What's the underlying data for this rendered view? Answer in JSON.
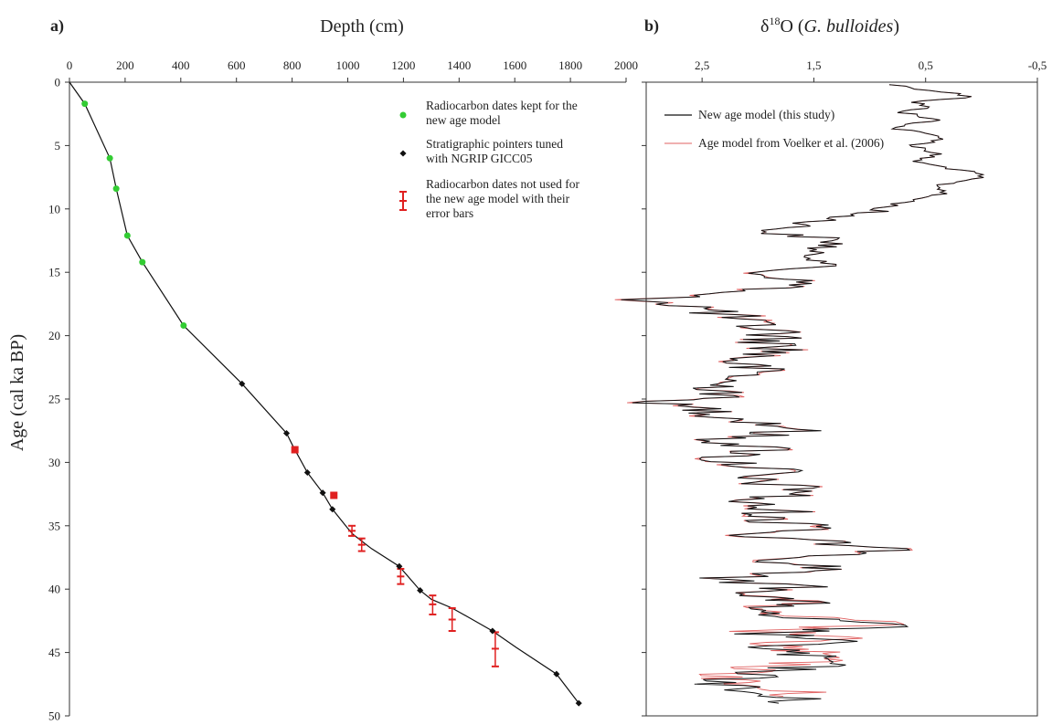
{
  "chart_data": [
    {
      "type": "scatter",
      "panel_label": "a)",
      "title": "Depth (cm)",
      "xlabel": "Depth (cm)",
      "ylabel": "Age (cal ka BP)",
      "xlim": [
        0,
        2000
      ],
      "ylim": [
        50,
        0
      ],
      "xticks": [
        "0",
        "200",
        "400",
        "600",
        "800",
        "1000",
        "1200",
        "1400",
        "1600",
        "1800",
        "2000"
      ],
      "yticks": [
        "0",
        "5",
        "10",
        "15",
        "20",
        "25",
        "30",
        "35",
        "40",
        "45",
        "50"
      ],
      "x_axis_position": "top",
      "grid": false,
      "legend_position": "top-right",
      "legend": [
        "Radiocarbon dates kept for the|new age model",
        "Stratigraphic pointers tuned|with NGRIP GICC05",
        "Radiocarbon dates not used for|the new age model with their|error bars"
      ],
      "colors": {
        "kept": "#33cc33",
        "pointer": "#111111",
        "notused": "#e02020",
        "line": "#111111"
      },
      "age_model_line": [
        [
          0,
          0
        ],
        [
          55,
          1.7
        ],
        [
          145,
          6.0
        ],
        [
          168,
          8.4
        ],
        [
          208,
          12.1
        ],
        [
          262,
          14.2
        ],
        [
          410,
          19.2
        ],
        [
          620,
          23.8
        ],
        [
          780,
          27.7
        ],
        [
          805,
          28.8
        ],
        [
          855,
          30.8
        ],
        [
          910,
          32.4
        ],
        [
          945,
          33.7
        ],
        [
          1000,
          35.2
        ],
        [
          1020,
          35.7
        ],
        [
          1085,
          36.8
        ],
        [
          1185,
          38.2
        ],
        [
          1260,
          40.1
        ],
        [
          1300,
          40.8
        ],
        [
          1375,
          41.5
        ],
        [
          1440,
          42.3
        ],
        [
          1520,
          43.3
        ],
        [
          1605,
          44.6
        ],
        [
          1750,
          46.7
        ],
        [
          1830,
          49.0
        ]
      ],
      "radiocarbon_kept": [
        [
          55,
          1.7
        ],
        [
          145,
          6.0
        ],
        [
          168,
          8.4
        ],
        [
          208,
          12.1
        ],
        [
          262,
          14.2
        ],
        [
          410,
          19.2
        ]
      ],
      "stratigraphic_pointers": [
        [
          620,
          23.8
        ],
        [
          780,
          27.7
        ],
        [
          855,
          30.8
        ],
        [
          910,
          32.4
        ],
        [
          945,
          33.7
        ],
        [
          1185,
          38.2
        ],
        [
          1260,
          40.1
        ],
        [
          1520,
          43.3
        ],
        [
          1750,
          46.7
        ],
        [
          1830,
          49.0
        ]
      ],
      "radiocarbon_not_used": [
        {
          "depth": 810,
          "age": 29.0,
          "low": 28.8,
          "high": 29.2
        },
        {
          "depth": 950,
          "age": 32.6,
          "low": 32.5,
          "high": 32.7
        },
        {
          "depth": 1015,
          "age": 35.4,
          "low": 35.0,
          "high": 35.8
        },
        {
          "depth": 1050,
          "age": 36.5,
          "low": 36.0,
          "high": 37.0
        },
        {
          "depth": 1190,
          "age": 39.0,
          "low": 38.4,
          "high": 39.6
        },
        {
          "depth": 1305,
          "age": 41.2,
          "low": 40.5,
          "high": 42.0
        },
        {
          "depth": 1375,
          "age": 42.4,
          "low": 41.5,
          "high": 43.3
        },
        {
          "depth": 1530,
          "age": 44.7,
          "low": 43.4,
          "high": 46.1
        }
      ]
    },
    {
      "type": "line",
      "panel_label": "b)",
      "title": "δ18O (G. bulloides)",
      "title_parts": {
        "delta": "δ",
        "sup": "18",
        "base": "O (",
        "species": "G. bulloides",
        "close": ")"
      },
      "xlim": [
        3.0,
        -0.5
      ],
      "ylim": [
        50,
        0
      ],
      "xticks": [
        "2,5",
        "1,5",
        "0,5",
        "-0,5"
      ],
      "x_axis_position": "top",
      "grid": false,
      "legend_position": "top-left",
      "series": [
        {
          "name": "New age model (this study)",
          "color": "#111111"
        },
        {
          "name": "Age model from Voelker et al. (2006)",
          "color": "#e06060"
        }
      ],
      "profile": [
        [
          0.2,
          0.8
        ],
        [
          1.2,
          0.0
        ],
        [
          1.5,
          0.6
        ],
        [
          2.0,
          0.5
        ],
        [
          2.4,
          0.7
        ],
        [
          3.0,
          0.4
        ],
        [
          3.6,
          0.8
        ],
        [
          4.4,
          0.3
        ],
        [
          5.0,
          0.6
        ],
        [
          5.6,
          0.4
        ],
        [
          6.3,
          0.6
        ],
        [
          6.9,
          0.2
        ],
        [
          7.4,
          0.0
        ],
        [
          8.2,
          0.4
        ],
        [
          8.6,
          0.3
        ],
        [
          9.3,
          0.6
        ],
        [
          10.4,
          1.1
        ],
        [
          11.1,
          1.5
        ],
        [
          11.9,
          1.95
        ],
        [
          12.3,
          1.4
        ],
        [
          12.8,
          1.3
        ],
        [
          13.4,
          1.6
        ],
        [
          14.3,
          1.3
        ],
        [
          15.1,
          2.05
        ],
        [
          15.6,
          1.65
        ],
        [
          16.1,
          1.6
        ],
        [
          16.7,
          2.6
        ],
        [
          17.2,
          2.95
        ],
        [
          17.7,
          2.55
        ],
        [
          18.4,
          2.3
        ],
        [
          19.1,
          2.1
        ],
        [
          19.7,
          1.8
        ],
        [
          20.4,
          1.9
        ],
        [
          21.1,
          1.75
        ],
        [
          22.0,
          2.2
        ],
        [
          22.9,
          2.0
        ],
        [
          23.8,
          2.4
        ],
        [
          24.5,
          2.2
        ],
        [
          25.4,
          2.9
        ],
        [
          25.9,
          2.4
        ],
        [
          26.5,
          2.2
        ],
        [
          27.4,
          1.6
        ],
        [
          28.2,
          2.35
        ],
        [
          29.0,
          1.9
        ],
        [
          29.8,
          2.4
        ],
        [
          30.6,
          1.8
        ],
        [
          31.2,
          2.2
        ],
        [
          32.3,
          1.5
        ],
        [
          33.1,
          2.2
        ],
        [
          33.9,
          1.8
        ],
        [
          34.6,
          2.0
        ],
        [
          35.1,
          1.1
        ],
        [
          35.7,
          2.2
        ],
        [
          36.4,
          1.3
        ],
        [
          37.1,
          0.75
        ],
        [
          37.7,
          1.8
        ],
        [
          38.5,
          1.3
        ],
        [
          39.2,
          2.55
        ],
        [
          39.7,
          1.6
        ],
        [
          40.5,
          2.0
        ],
        [
          41.2,
          1.6
        ],
        [
          41.8,
          2.2
        ],
        [
          42.5,
          1.4
        ],
        [
          42.9,
          0.8
        ],
        [
          43.5,
          2.0
        ],
        [
          44.0,
          1.3
        ],
        [
          44.6,
          1.9
        ],
        [
          45.3,
          1.6
        ],
        [
          45.8,
          1.35
        ],
        [
          46.6,
          1.95
        ],
        [
          47.3,
          2.3
        ],
        [
          48.0,
          2.2
        ],
        [
          48.7,
          1.7
        ],
        [
          49.0,
          1.65
        ]
      ]
    }
  ]
}
